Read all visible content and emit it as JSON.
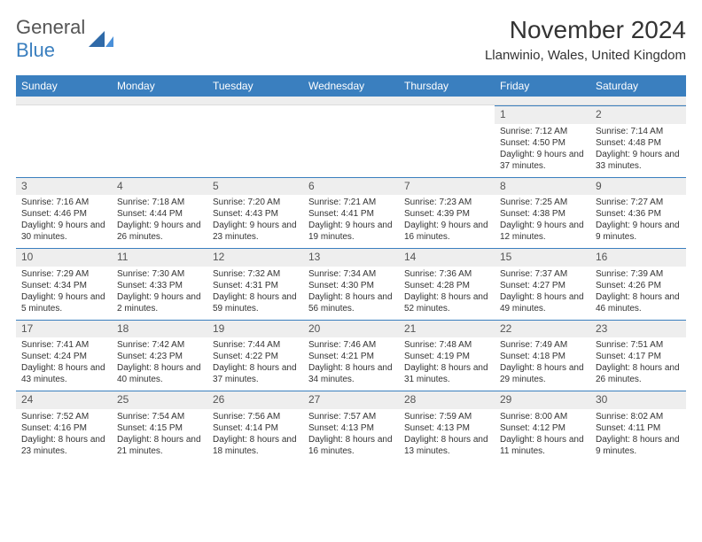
{
  "brand": {
    "part1": "General",
    "part2": "Blue"
  },
  "title": "November 2024",
  "location": "Llanwinio, Wales, United Kingdom",
  "colors": {
    "header_bar": "#3a7fbf",
    "daynum_bg": "#eeeeee",
    "cell_border": "#3a7fbf",
    "text": "#333333",
    "background": "#ffffff"
  },
  "weekdays": [
    "Sunday",
    "Monday",
    "Tuesday",
    "Wednesday",
    "Thursday",
    "Friday",
    "Saturday"
  ],
  "leading_empty": 5,
  "days": [
    {
      "n": 1,
      "sunrise": "7:12 AM",
      "sunset": "4:50 PM",
      "dl": "9 hours and 37 minutes."
    },
    {
      "n": 2,
      "sunrise": "7:14 AM",
      "sunset": "4:48 PM",
      "dl": "9 hours and 33 minutes."
    },
    {
      "n": 3,
      "sunrise": "7:16 AM",
      "sunset": "4:46 PM",
      "dl": "9 hours and 30 minutes."
    },
    {
      "n": 4,
      "sunrise": "7:18 AM",
      "sunset": "4:44 PM",
      "dl": "9 hours and 26 minutes."
    },
    {
      "n": 5,
      "sunrise": "7:20 AM",
      "sunset": "4:43 PM",
      "dl": "9 hours and 23 minutes."
    },
    {
      "n": 6,
      "sunrise": "7:21 AM",
      "sunset": "4:41 PM",
      "dl": "9 hours and 19 minutes."
    },
    {
      "n": 7,
      "sunrise": "7:23 AM",
      "sunset": "4:39 PM",
      "dl": "9 hours and 16 minutes."
    },
    {
      "n": 8,
      "sunrise": "7:25 AM",
      "sunset": "4:38 PM",
      "dl": "9 hours and 12 minutes."
    },
    {
      "n": 9,
      "sunrise": "7:27 AM",
      "sunset": "4:36 PM",
      "dl": "9 hours and 9 minutes."
    },
    {
      "n": 10,
      "sunrise": "7:29 AM",
      "sunset": "4:34 PM",
      "dl": "9 hours and 5 minutes."
    },
    {
      "n": 11,
      "sunrise": "7:30 AM",
      "sunset": "4:33 PM",
      "dl": "9 hours and 2 minutes."
    },
    {
      "n": 12,
      "sunrise": "7:32 AM",
      "sunset": "4:31 PM",
      "dl": "8 hours and 59 minutes."
    },
    {
      "n": 13,
      "sunrise": "7:34 AM",
      "sunset": "4:30 PM",
      "dl": "8 hours and 56 minutes."
    },
    {
      "n": 14,
      "sunrise": "7:36 AM",
      "sunset": "4:28 PM",
      "dl": "8 hours and 52 minutes."
    },
    {
      "n": 15,
      "sunrise": "7:37 AM",
      "sunset": "4:27 PM",
      "dl": "8 hours and 49 minutes."
    },
    {
      "n": 16,
      "sunrise": "7:39 AM",
      "sunset": "4:26 PM",
      "dl": "8 hours and 46 minutes."
    },
    {
      "n": 17,
      "sunrise": "7:41 AM",
      "sunset": "4:24 PM",
      "dl": "8 hours and 43 minutes."
    },
    {
      "n": 18,
      "sunrise": "7:42 AM",
      "sunset": "4:23 PM",
      "dl": "8 hours and 40 minutes."
    },
    {
      "n": 19,
      "sunrise": "7:44 AM",
      "sunset": "4:22 PM",
      "dl": "8 hours and 37 minutes."
    },
    {
      "n": 20,
      "sunrise": "7:46 AM",
      "sunset": "4:21 PM",
      "dl": "8 hours and 34 minutes."
    },
    {
      "n": 21,
      "sunrise": "7:48 AM",
      "sunset": "4:19 PM",
      "dl": "8 hours and 31 minutes."
    },
    {
      "n": 22,
      "sunrise": "7:49 AM",
      "sunset": "4:18 PM",
      "dl": "8 hours and 29 minutes."
    },
    {
      "n": 23,
      "sunrise": "7:51 AM",
      "sunset": "4:17 PM",
      "dl": "8 hours and 26 minutes."
    },
    {
      "n": 24,
      "sunrise": "7:52 AM",
      "sunset": "4:16 PM",
      "dl": "8 hours and 23 minutes."
    },
    {
      "n": 25,
      "sunrise": "7:54 AM",
      "sunset": "4:15 PM",
      "dl": "8 hours and 21 minutes."
    },
    {
      "n": 26,
      "sunrise": "7:56 AM",
      "sunset": "4:14 PM",
      "dl": "8 hours and 18 minutes."
    },
    {
      "n": 27,
      "sunrise": "7:57 AM",
      "sunset": "4:13 PM",
      "dl": "8 hours and 16 minutes."
    },
    {
      "n": 28,
      "sunrise": "7:59 AM",
      "sunset": "4:13 PM",
      "dl": "8 hours and 13 minutes."
    },
    {
      "n": 29,
      "sunrise": "8:00 AM",
      "sunset": "4:12 PM",
      "dl": "8 hours and 11 minutes."
    },
    {
      "n": 30,
      "sunrise": "8:02 AM",
      "sunset": "4:11 PM",
      "dl": "8 hours and 9 minutes."
    }
  ],
  "labels": {
    "sunrise": "Sunrise: ",
    "sunset": "Sunset: ",
    "daylight": "Daylight: "
  },
  "typography": {
    "title_fontsize": 28,
    "location_fontsize": 15,
    "weekday_fontsize": 12,
    "cell_fontsize": 10
  }
}
